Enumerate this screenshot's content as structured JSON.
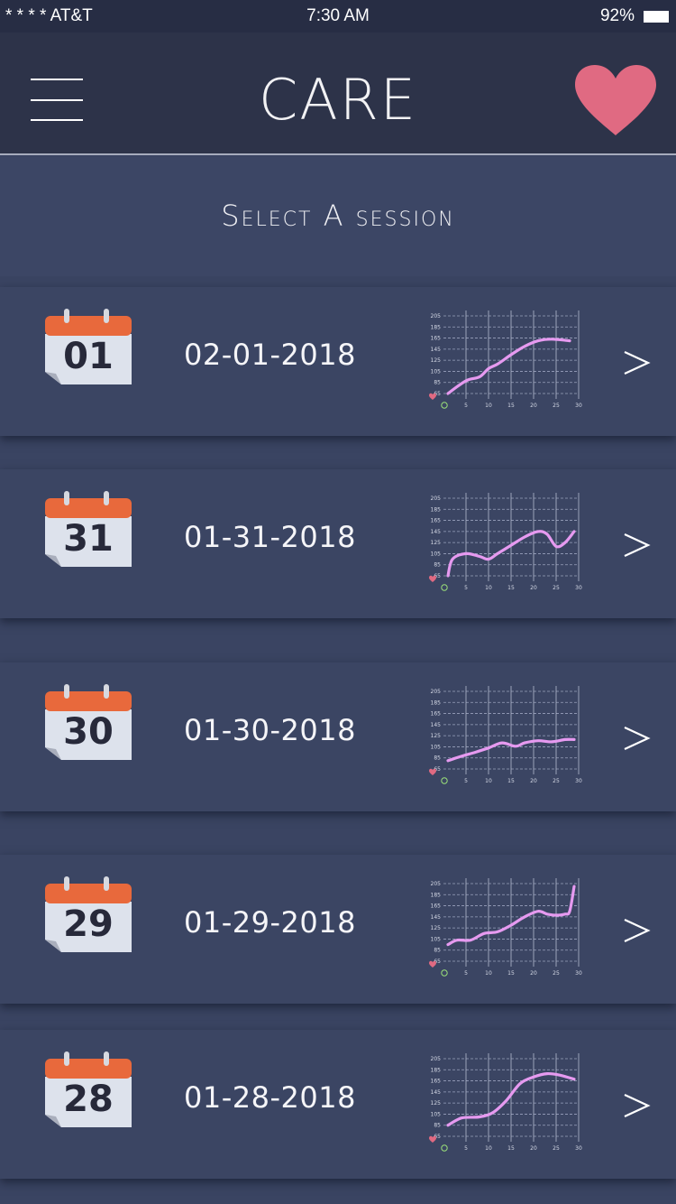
{
  "status_bar": {
    "carrier": "* * * * AT&T",
    "time": "7:30 AM",
    "battery": "92%"
  },
  "nav": {
    "title": "CARE",
    "menu_icon": "hamburger-menu-icon",
    "favorite_icon": "heart-icon"
  },
  "header": {
    "title": "Select A session"
  },
  "chart_axes": {
    "y_ticks": [
      "205",
      "185",
      "165",
      "145",
      "125",
      "105",
      "85",
      "65"
    ],
    "x_ticks": [
      "5",
      "10",
      "15",
      "20",
      "25",
      "30"
    ]
  },
  "colors": {
    "background": "#3a4462",
    "nav_background": "#2d3349",
    "card": "#3b4563",
    "heart": "#e06a82",
    "calendar_top": "#e8693c",
    "chart_line": "#e69af0"
  },
  "sessions": [
    {
      "day": "01",
      "date": "02-01-2018"
    },
    {
      "day": "31",
      "date": "01-31-2018"
    },
    {
      "day": "30",
      "date": "01-30-2018"
    },
    {
      "day": "29",
      "date": "01-29-2018"
    },
    {
      "day": "28",
      "date": "01-28-2018"
    }
  ],
  "chart_data": [
    {
      "type": "line",
      "x": [
        1,
        5,
        8,
        10,
        12,
        15,
        18,
        21,
        24,
        28
      ],
      "series": [
        {
          "values": [
            65,
            88,
            95,
            110,
            118,
            135,
            150,
            160,
            163,
            160
          ]
        }
      ],
      "xlim": [
        0,
        30
      ],
      "ylim": [
        65,
        205
      ]
    },
    {
      "type": "line",
      "x": [
        1,
        2,
        5,
        8,
        10,
        12,
        15,
        18,
        21,
        23,
        25,
        27,
        29
      ],
      "series": [
        {
          "values": [
            65,
            95,
            105,
            100,
            95,
            105,
            120,
            135,
            145,
            140,
            118,
            125,
            145
          ]
        }
      ],
      "xlim": [
        0,
        30
      ],
      "ylim": [
        65,
        205
      ]
    },
    {
      "type": "line",
      "x": [
        1,
        4,
        7,
        10,
        13,
        16,
        18,
        21,
        24,
        27,
        29
      ],
      "series": [
        {
          "values": [
            80,
            88,
            95,
            103,
            112,
            106,
            112,
            116,
            114,
            118,
            118
          ]
        }
      ],
      "xlim": [
        0,
        30
      ],
      "ylim": [
        65,
        205
      ]
    },
    {
      "type": "line",
      "x": [
        1,
        3,
        6,
        9,
        12,
        15,
        18,
        21,
        23,
        25,
        27,
        28,
        29
      ],
      "series": [
        {
          "values": [
            95,
            103,
            103,
            115,
            118,
            130,
            145,
            155,
            150,
            148,
            150,
            155,
            200
          ]
        }
      ],
      "xlim": [
        0,
        30
      ],
      "ylim": [
        65,
        205
      ]
    },
    {
      "type": "line",
      "x": [
        1,
        4,
        8,
        11,
        14,
        17,
        20,
        23,
        26,
        29
      ],
      "series": [
        {
          "values": [
            85,
            98,
            100,
            108,
            130,
            160,
            172,
            178,
            175,
            168
          ]
        }
      ],
      "xlim": [
        0,
        30
      ],
      "ylim": [
        65,
        205
      ]
    }
  ]
}
